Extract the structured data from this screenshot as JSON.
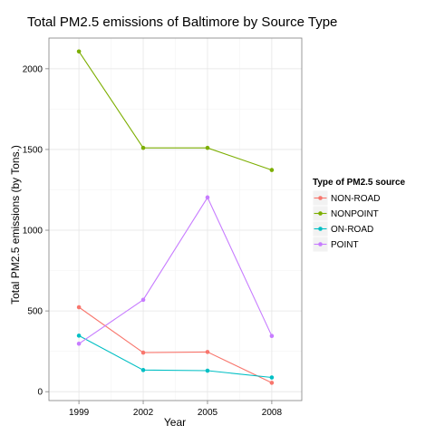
{
  "chart_data": {
    "type": "line",
    "title": "Total PM2.5 emissions of Baltimore by Source Type",
    "xlabel": "Year",
    "ylabel": "Total PM2.5 emissions (by Tons.)",
    "x": [
      1999,
      2002,
      2005,
      2008
    ],
    "xticks": [
      "1999",
      "2002",
      "2005",
      "2008"
    ],
    "yticks": [
      0,
      500,
      1000,
      1500,
      2000
    ],
    "xlim": [
      1997.6,
      2009.4
    ],
    "ylim": [
      -55,
      2190
    ],
    "grid": true,
    "legend_title": "Type of PM2.5 source",
    "legend_placement": "right",
    "series": [
      {
        "name": "NON-ROAD",
        "color": "#f8766d",
        "values": [
          523,
          242,
          246,
          55
        ]
      },
      {
        "name": "NONPOINT",
        "color": "#7cae00",
        "values": [
          2107,
          1510,
          1510,
          1373
        ]
      },
      {
        "name": "ON-ROAD",
        "color": "#00bfc4",
        "values": [
          347,
          134,
          130,
          88
        ]
      },
      {
        "name": "POINT",
        "color": "#c77cff",
        "values": [
          297,
          569,
          1203,
          345
        ]
      }
    ]
  }
}
